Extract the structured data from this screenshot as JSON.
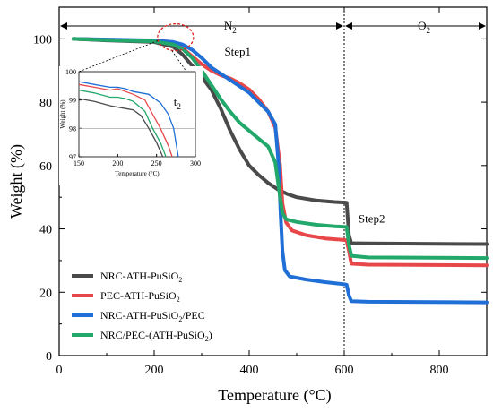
{
  "chart_data": {
    "type": "line",
    "xlabel": "Temperature (°C)",
    "ylabel": "Weight (%)",
    "xlim": [
      0,
      900
    ],
    "ylim": [
      0,
      110
    ],
    "x_ticks": [
      0,
      200,
      400,
      600,
      800
    ],
    "y_ticks": [
      0,
      20,
      40,
      60,
      80,
      100
    ],
    "grid": false,
    "legend_position": "bottom-left",
    "divider_x": 600,
    "annotations": {
      "n2": {
        "label": "N",
        "sub": "2"
      },
      "o2": {
        "label": "O",
        "sub": "2"
      },
      "step1": "Step1",
      "step2": "Step2"
    },
    "series": [
      {
        "name": "NRC-ATH-PuSiO",
        "name_sub": "2",
        "color": "#4a4a4a",
        "points": [
          [
            30,
            100
          ],
          [
            100,
            99.5
          ],
          [
            200,
            99
          ],
          [
            240,
            97.5
          ],
          [
            260,
            95
          ],
          [
            280,
            91.5
          ],
          [
            300,
            88
          ],
          [
            320,
            84
          ],
          [
            340,
            78
          ],
          [
            360,
            71
          ],
          [
            380,
            65
          ],
          [
            400,
            60
          ],
          [
            420,
            57
          ],
          [
            440,
            54.5
          ],
          [
            460,
            52.5
          ],
          [
            480,
            51
          ],
          [
            500,
            50
          ],
          [
            540,
            49
          ],
          [
            580,
            48.5
          ],
          [
            605,
            48.3
          ],
          [
            610,
            38
          ],
          [
            615,
            35.5
          ],
          [
            650,
            35.4
          ],
          [
            900,
            35.2
          ]
        ]
      },
      {
        "name": "PEC-ATH-PuSiO",
        "name_sub": "2",
        "color": "#e8474a",
        "points": [
          [
            30,
            100
          ],
          [
            100,
            99.7
          ],
          [
            200,
            99.3
          ],
          [
            240,
            98.5
          ],
          [
            260,
            97
          ],
          [
            280,
            94.5
          ],
          [
            300,
            92
          ],
          [
            320,
            90
          ],
          [
            340,
            88.5
          ],
          [
            360,
            87.5
          ],
          [
            380,
            86
          ],
          [
            400,
            84
          ],
          [
            420,
            81
          ],
          [
            440,
            77
          ],
          [
            455,
            72
          ],
          [
            465,
            60
          ],
          [
            470,
            48
          ],
          [
            478,
            42
          ],
          [
            490,
            39.5
          ],
          [
            520,
            38
          ],
          [
            560,
            37
          ],
          [
            600,
            36.5
          ],
          [
            605,
            36.4
          ],
          [
            610,
            33
          ],
          [
            615,
            29
          ],
          [
            650,
            28.7
          ],
          [
            900,
            28.5
          ]
        ]
      },
      {
        "name": "NRC-ATH-PuSiO",
        "name_sub": "2",
        "name_suffix": "/PEC",
        "color": "#1f6fd6",
        "points": [
          [
            30,
            100
          ],
          [
            100,
            99.8
          ],
          [
            200,
            99.5
          ],
          [
            240,
            99
          ],
          [
            260,
            98.2
          ],
          [
            280,
            96.5
          ],
          [
            300,
            94
          ],
          [
            320,
            91
          ],
          [
            340,
            89
          ],
          [
            360,
            87
          ],
          [
            380,
            85
          ],
          [
            400,
            83
          ],
          [
            420,
            80
          ],
          [
            440,
            77
          ],
          [
            455,
            73
          ],
          [
            462,
            60
          ],
          [
            466,
            45
          ],
          [
            470,
            33
          ],
          [
            475,
            27
          ],
          [
            485,
            25
          ],
          [
            520,
            24
          ],
          [
            560,
            23.2
          ],
          [
            600,
            22.5
          ],
          [
            605,
            22.4
          ],
          [
            610,
            19
          ],
          [
            615,
            17.2
          ],
          [
            650,
            17
          ],
          [
            900,
            16.8
          ]
        ]
      },
      {
        "name": "NRC/PEC-(ATH-PuSiO",
        "name_sub": "2",
        "name_suffix": ")",
        "color": "#22a86a",
        "points": [
          [
            30,
            100
          ],
          [
            100,
            99.6
          ],
          [
            200,
            99.2
          ],
          [
            240,
            98.2
          ],
          [
            260,
            96.8
          ],
          [
            280,
            94
          ],
          [
            300,
            90
          ],
          [
            320,
            85.5
          ],
          [
            340,
            81
          ],
          [
            360,
            77
          ],
          [
            380,
            73.5
          ],
          [
            400,
            71
          ],
          [
            420,
            68.5
          ],
          [
            440,
            66
          ],
          [
            455,
            61
          ],
          [
            465,
            50
          ],
          [
            470,
            45
          ],
          [
            478,
            43
          ],
          [
            500,
            42.2
          ],
          [
            540,
            41.3
          ],
          [
            580,
            40.8
          ],
          [
            605,
            40.6
          ],
          [
            610,
            35
          ],
          [
            615,
            31.5
          ],
          [
            650,
            31
          ],
          [
            900,
            30.8
          ]
        ]
      }
    ],
    "inset": {
      "xlabel": "Temperature (°C)",
      "ylabel": "Weight (%)",
      "xlim": [
        150,
        300
      ],
      "ylim": [
        97,
        100
      ],
      "x_ticks": [
        150,
        200,
        250,
        300
      ],
      "y_ticks": [
        97,
        98,
        99,
        100
      ],
      "reference_line_y": 98,
      "annotation": {
        "label": "t",
        "sub": "2"
      },
      "series_points": [
        [
          [
            150,
            99.05
          ],
          [
            170,
            98.95
          ],
          [
            190,
            98.8
          ],
          [
            200,
            98.75
          ],
          [
            210,
            98.7
          ],
          [
            220,
            98.65
          ],
          [
            230,
            98.45
          ],
          [
            240,
            98.0
          ],
          [
            250,
            97.5
          ],
          [
            258,
            97.0
          ]
        ],
        [
          [
            150,
            99.55
          ],
          [
            170,
            99.45
          ],
          [
            190,
            99.35
          ],
          [
            200,
            99.4
          ],
          [
            210,
            99.3
          ],
          [
            220,
            99.2
          ],
          [
            235,
            99.0
          ],
          [
            245,
            98.5
          ],
          [
            255,
            98.0
          ],
          [
            265,
            97.4
          ],
          [
            270,
            97.0
          ]
        ],
        [
          [
            150,
            99.65
          ],
          [
            170,
            99.55
          ],
          [
            190,
            99.45
          ],
          [
            200,
            99.45
          ],
          [
            210,
            99.4
          ],
          [
            220,
            99.3
          ],
          [
            240,
            99.2
          ],
          [
            255,
            98.9
          ],
          [
            265,
            98.5
          ],
          [
            272,
            98.0
          ],
          [
            278,
            97.0
          ]
        ],
        [
          [
            150,
            99.35
          ],
          [
            170,
            99.25
          ],
          [
            190,
            99.1
          ],
          [
            200,
            99.1
          ],
          [
            210,
            99.05
          ],
          [
            220,
            98.95
          ],
          [
            235,
            98.6
          ],
          [
            245,
            98.0
          ],
          [
            255,
            97.5
          ],
          [
            262,
            97.0
          ]
        ]
      ]
    }
  }
}
